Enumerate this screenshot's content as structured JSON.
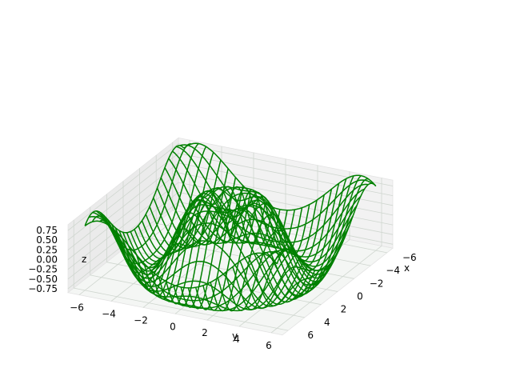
{
  "chart_data": {
    "type": "surface-wireframe-3d",
    "function": "z = sin(sqrt(x^2 + y^2))",
    "x_range": [
      -6,
      6
    ],
    "y_range": [
      -6,
      6
    ],
    "z_range": [
      -0.85,
      0.9
    ],
    "wire_color": "#008000",
    "grid": true,
    "xlabel": "x",
    "ylabel": "y",
    "zlabel": "z",
    "x_ticks": [
      "−6",
      "−4",
      "−2",
      "0",
      "2",
      "4",
      "6"
    ],
    "y_ticks": [
      "−6",
      "−4",
      "−2",
      "0",
      "2",
      "4",
      "6"
    ],
    "z_ticks": [
      "0.75",
      "0.50",
      "0.25",
      "0.00",
      "−0.25",
      "−0.50",
      "−0.75"
    ]
  }
}
